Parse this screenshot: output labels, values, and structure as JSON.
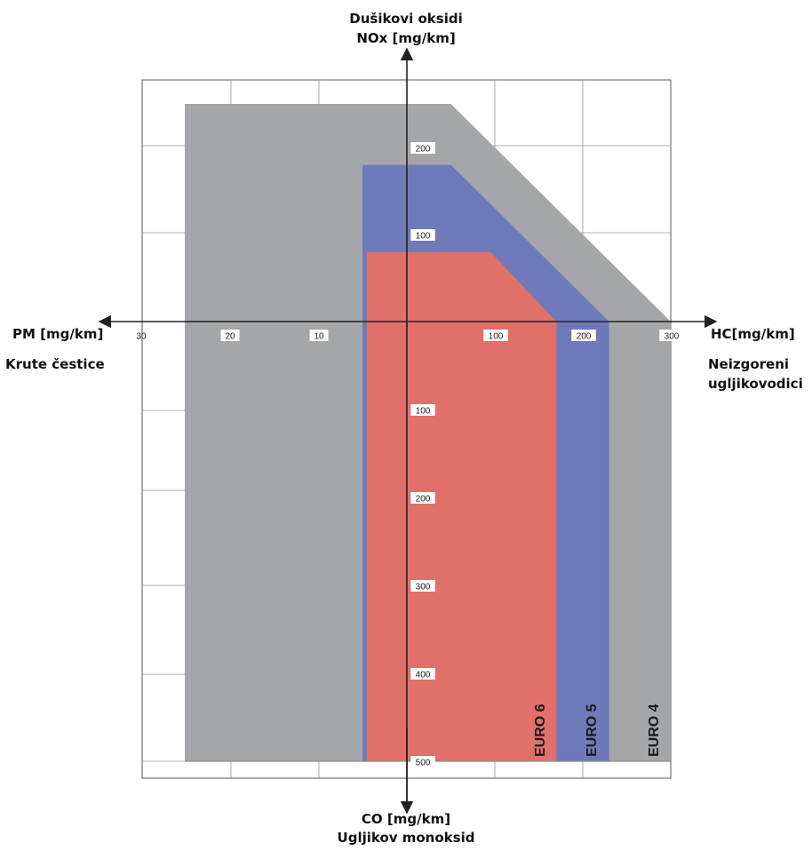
{
  "chart_data": {
    "type": "area",
    "axes": {
      "up": {
        "title_line1": "Dušikovi oksidi",
        "title_line2": "NOx [mg/km]",
        "ticks": [
          100,
          200
        ]
      },
      "down": {
        "title_line1": "CO [mg/km]",
        "title_line2": "Ugljikov monoksid",
        "ticks": [
          100,
          200,
          300,
          400,
          500
        ]
      },
      "left": {
        "title_line1": "PM [mg/km]",
        "title_line2": "Krute čestice",
        "ticks": [
          10,
          20,
          30
        ]
      },
      "right": {
        "title_line1": "HC[mg/km]",
        "title_line2": "Neizgoreni",
        "title_line3": "ugljikovodici",
        "ticks": [
          100,
          200,
          300
        ]
      }
    },
    "series": [
      {
        "name": "EURO 4",
        "color": "#a5a6a9",
        "PM": 25,
        "NOx": 250,
        "CO": 500,
        "HC": 300
      },
      {
        "name": "EURO 5",
        "color": "#6e7aba",
        "PM": 5,
        "NOx": 180,
        "CO": 500,
        "HC": 230
      },
      {
        "name": "EURO 6",
        "color": "#e1706a",
        "PM": 4.5,
        "NOx": 80,
        "CO": 500,
        "HC": 170
      }
    ],
    "grid": true,
    "legend": "labels inside bands, bottom-right"
  }
}
